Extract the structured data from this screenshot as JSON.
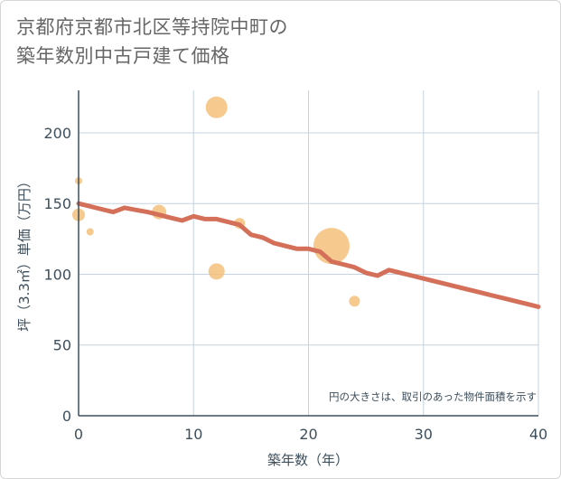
{
  "title_lines": [
    "京都府京都市北区等持院中町の",
    "築年数別中古戸建て価格"
  ],
  "chart_data": {
    "type": "scatter+line",
    "xlabel": "築年数（年）",
    "ylabel": "坪（3.3㎡）単価（万円）",
    "xlim": [
      0,
      40
    ],
    "ylim": [
      0,
      230
    ],
    "xticks": [
      0,
      10,
      20,
      30,
      40
    ],
    "yticks": [
      0,
      50,
      100,
      150,
      200
    ],
    "grid": true,
    "note": "円の大きさは、取引のあった物件面積を示す",
    "colors": {
      "bubble": "#f5c07a",
      "line": "#d4705a",
      "grid": "#c5d3e0",
      "axis": "#3d4f5c"
    },
    "bubbles": [
      {
        "x": 0,
        "y": 166,
        "size": 4
      },
      {
        "x": 0,
        "y": 142,
        "size": 7
      },
      {
        "x": 1,
        "y": 130,
        "size": 4
      },
      {
        "x": 7,
        "y": 144,
        "size": 8
      },
      {
        "x": 12,
        "y": 218,
        "size": 12
      },
      {
        "x": 12,
        "y": 102,
        "size": 9
      },
      {
        "x": 14,
        "y": 136,
        "size": 6
      },
      {
        "x": 22,
        "y": 120,
        "size": 20
      },
      {
        "x": 24,
        "y": 81,
        "size": 6
      }
    ],
    "line": {
      "x": [
        0,
        1,
        2,
        3,
        4,
        5,
        6,
        7,
        8,
        9,
        10,
        11,
        12,
        13,
        14,
        15,
        16,
        17,
        18,
        19,
        20,
        21,
        22,
        23,
        24,
        25,
        26,
        27,
        28,
        29,
        30,
        31,
        32,
        33,
        34,
        35,
        36,
        37,
        38,
        39,
        40
      ],
      "y": [
        150,
        148,
        146,
        144,
        147,
        145.5,
        144,
        142,
        140,
        138,
        141,
        139,
        139,
        137,
        135,
        128,
        126,
        122,
        120,
        118,
        118,
        116,
        109,
        107,
        105,
        101,
        99,
        103,
        101,
        99,
        97,
        95,
        93,
        91,
        89,
        87,
        85,
        83,
        81,
        79,
        77
      ]
    }
  }
}
